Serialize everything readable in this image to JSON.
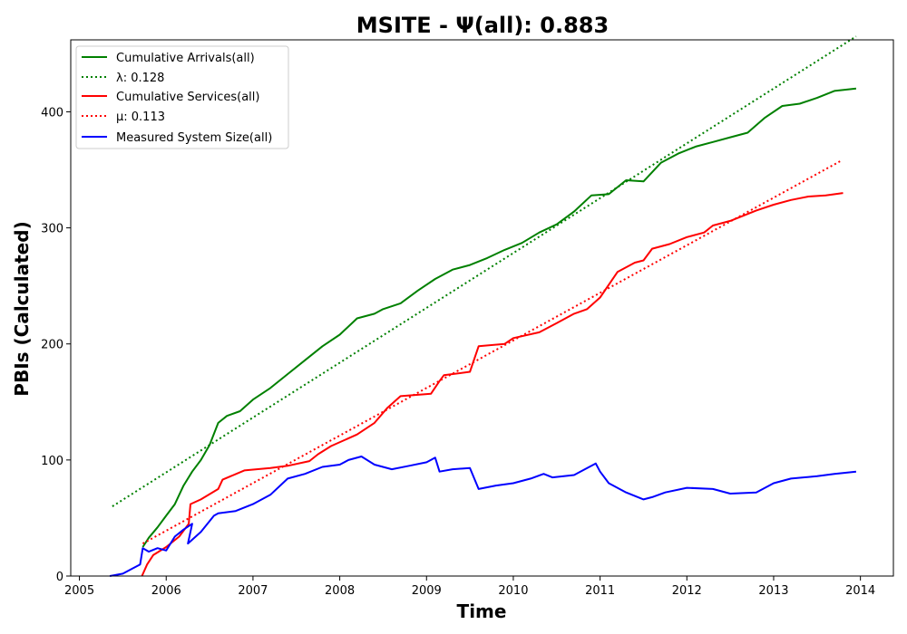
{
  "chart_data": {
    "type": "line",
    "title": "MSITE -  Ψ(all): 0.883",
    "xlabel": "Time",
    "ylabel": "PBIs (Calculated)",
    "xlim": [
      2004.9,
      2014.38
    ],
    "ylim": [
      0,
      462
    ],
    "x_ticks": [
      "2005",
      "2006",
      "2007",
      "2008",
      "2009",
      "2010",
      "2011",
      "2012",
      "2013",
      "2014"
    ],
    "y_ticks": [
      "0",
      "100",
      "200",
      "300",
      "400"
    ],
    "legend_position": "top-left",
    "grid": false,
    "series": [
      {
        "name": "Cumulative Arrivals(all)",
        "color": "#008000",
        "style": "solid",
        "points": [
          [
            2005.73,
            25
          ],
          [
            2005.8,
            33
          ],
          [
            2005.9,
            42
          ],
          [
            2006.0,
            52
          ],
          [
            2006.1,
            62
          ],
          [
            2006.2,
            78
          ],
          [
            2006.3,
            90
          ],
          [
            2006.4,
            100
          ],
          [
            2006.5,
            113
          ],
          [
            2006.6,
            132
          ],
          [
            2006.7,
            138
          ],
          [
            2006.85,
            142
          ],
          [
            2007.0,
            152
          ],
          [
            2007.2,
            162
          ],
          [
            2007.4,
            174
          ],
          [
            2007.6,
            186
          ],
          [
            2007.8,
            198
          ],
          [
            2008.0,
            208
          ],
          [
            2008.2,
            222
          ],
          [
            2008.4,
            226
          ],
          [
            2008.5,
            230
          ],
          [
            2008.7,
            235
          ],
          [
            2008.9,
            246
          ],
          [
            2009.1,
            256
          ],
          [
            2009.3,
            264
          ],
          [
            2009.5,
            268
          ],
          [
            2009.7,
            274
          ],
          [
            2009.9,
            281
          ],
          [
            2010.1,
            287
          ],
          [
            2010.3,
            296
          ],
          [
            2010.5,
            303
          ],
          [
            2010.7,
            314
          ],
          [
            2010.9,
            328
          ],
          [
            2011.1,
            329
          ],
          [
            2011.3,
            341
          ],
          [
            2011.5,
            340
          ],
          [
            2011.7,
            356
          ],
          [
            2011.9,
            364
          ],
          [
            2012.1,
            370
          ],
          [
            2012.3,
            374
          ],
          [
            2012.5,
            378
          ],
          [
            2012.7,
            382
          ],
          [
            2012.9,
            395
          ],
          [
            2013.1,
            405
          ],
          [
            2013.3,
            407
          ],
          [
            2013.5,
            412
          ],
          [
            2013.7,
            418
          ],
          [
            2013.95,
            420
          ]
        ]
      },
      {
        "name": "λ: 0.128",
        "color": "#008000",
        "style": "dotted",
        "points": [
          [
            2005.38,
            60
          ],
          [
            2013.95,
            465
          ]
        ]
      },
      {
        "name": "Cumulative Services(all)",
        "color": "#ff0000",
        "style": "solid",
        "points": [
          [
            2005.72,
            0
          ],
          [
            2005.78,
            10
          ],
          [
            2005.85,
            18
          ],
          [
            2006.0,
            25
          ],
          [
            2006.15,
            34
          ],
          [
            2006.26,
            45
          ],
          [
            2006.28,
            62
          ],
          [
            2006.4,
            66
          ],
          [
            2006.6,
            75
          ],
          [
            2006.65,
            83
          ],
          [
            2006.9,
            91
          ],
          [
            2007.2,
            93
          ],
          [
            2007.4,
            95
          ],
          [
            2007.65,
            99
          ],
          [
            2007.75,
            105
          ],
          [
            2007.9,
            112
          ],
          [
            2008.2,
            122
          ],
          [
            2008.4,
            132
          ],
          [
            2008.55,
            145
          ],
          [
            2008.7,
            155
          ],
          [
            2009.05,
            157
          ],
          [
            2009.15,
            168
          ],
          [
            2009.2,
            173
          ],
          [
            2009.5,
            176
          ],
          [
            2009.6,
            198
          ],
          [
            2009.9,
            200
          ],
          [
            2010.0,
            205
          ],
          [
            2010.3,
            210
          ],
          [
            2010.5,
            218
          ],
          [
            2010.7,
            226
          ],
          [
            2010.85,
            230
          ],
          [
            2011.0,
            240
          ],
          [
            2011.2,
            262
          ],
          [
            2011.4,
            270
          ],
          [
            2011.5,
            272
          ],
          [
            2011.6,
            282
          ],
          [
            2011.8,
            286
          ],
          [
            2012.0,
            292
          ],
          [
            2012.2,
            296
          ],
          [
            2012.3,
            302
          ],
          [
            2012.5,
            306
          ],
          [
            2012.8,
            315
          ],
          [
            2013.0,
            320
          ],
          [
            2013.2,
            324
          ],
          [
            2013.4,
            327
          ],
          [
            2013.6,
            328
          ],
          [
            2013.8,
            330
          ]
        ]
      },
      {
        "name": "μ: 0.113",
        "color": "#ff0000",
        "style": "dotted",
        "points": [
          [
            2005.73,
            28
          ],
          [
            2013.78,
            358
          ]
        ]
      },
      {
        "name": "Measured System Size(all)",
        "color": "#0000ff",
        "style": "solid",
        "points": [
          [
            2005.35,
            0
          ],
          [
            2005.5,
            2
          ],
          [
            2005.6,
            6
          ],
          [
            2005.7,
            10
          ],
          [
            2005.73,
            24
          ],
          [
            2005.8,
            21
          ],
          [
            2005.9,
            24
          ],
          [
            2006.0,
            22
          ],
          [
            2006.1,
            34
          ],
          [
            2006.2,
            40
          ],
          [
            2006.3,
            45
          ],
          [
            2006.25,
            28
          ],
          [
            2006.4,
            38
          ],
          [
            2006.55,
            52
          ],
          [
            2006.6,
            54
          ],
          [
            2006.8,
            56
          ],
          [
            2007.0,
            62
          ],
          [
            2007.2,
            70
          ],
          [
            2007.4,
            84
          ],
          [
            2007.6,
            88
          ],
          [
            2007.8,
            94
          ],
          [
            2008.0,
            96
          ],
          [
            2008.1,
            100
          ],
          [
            2008.25,
            103
          ],
          [
            2008.4,
            96
          ],
          [
            2008.6,
            92
          ],
          [
            2008.8,
            95
          ],
          [
            2009.0,
            98
          ],
          [
            2009.1,
            102
          ],
          [
            2009.15,
            90
          ],
          [
            2009.3,
            92
          ],
          [
            2009.5,
            93
          ],
          [
            2009.6,
            75
          ],
          [
            2009.8,
            78
          ],
          [
            2010.0,
            80
          ],
          [
            2010.2,
            84
          ],
          [
            2010.35,
            88
          ],
          [
            2010.45,
            85
          ],
          [
            2010.7,
            87
          ],
          [
            2010.9,
            95
          ],
          [
            2010.95,
            97
          ],
          [
            2011.0,
            90
          ],
          [
            2011.1,
            80
          ],
          [
            2011.3,
            72
          ],
          [
            2011.5,
            66
          ],
          [
            2011.6,
            68
          ],
          [
            2011.75,
            72
          ],
          [
            2012.0,
            76
          ],
          [
            2012.3,
            75
          ],
          [
            2012.5,
            71
          ],
          [
            2012.8,
            72
          ],
          [
            2013.0,
            80
          ],
          [
            2013.2,
            84
          ],
          [
            2013.5,
            86
          ],
          [
            2013.7,
            88
          ],
          [
            2013.95,
            90
          ]
        ]
      }
    ]
  }
}
